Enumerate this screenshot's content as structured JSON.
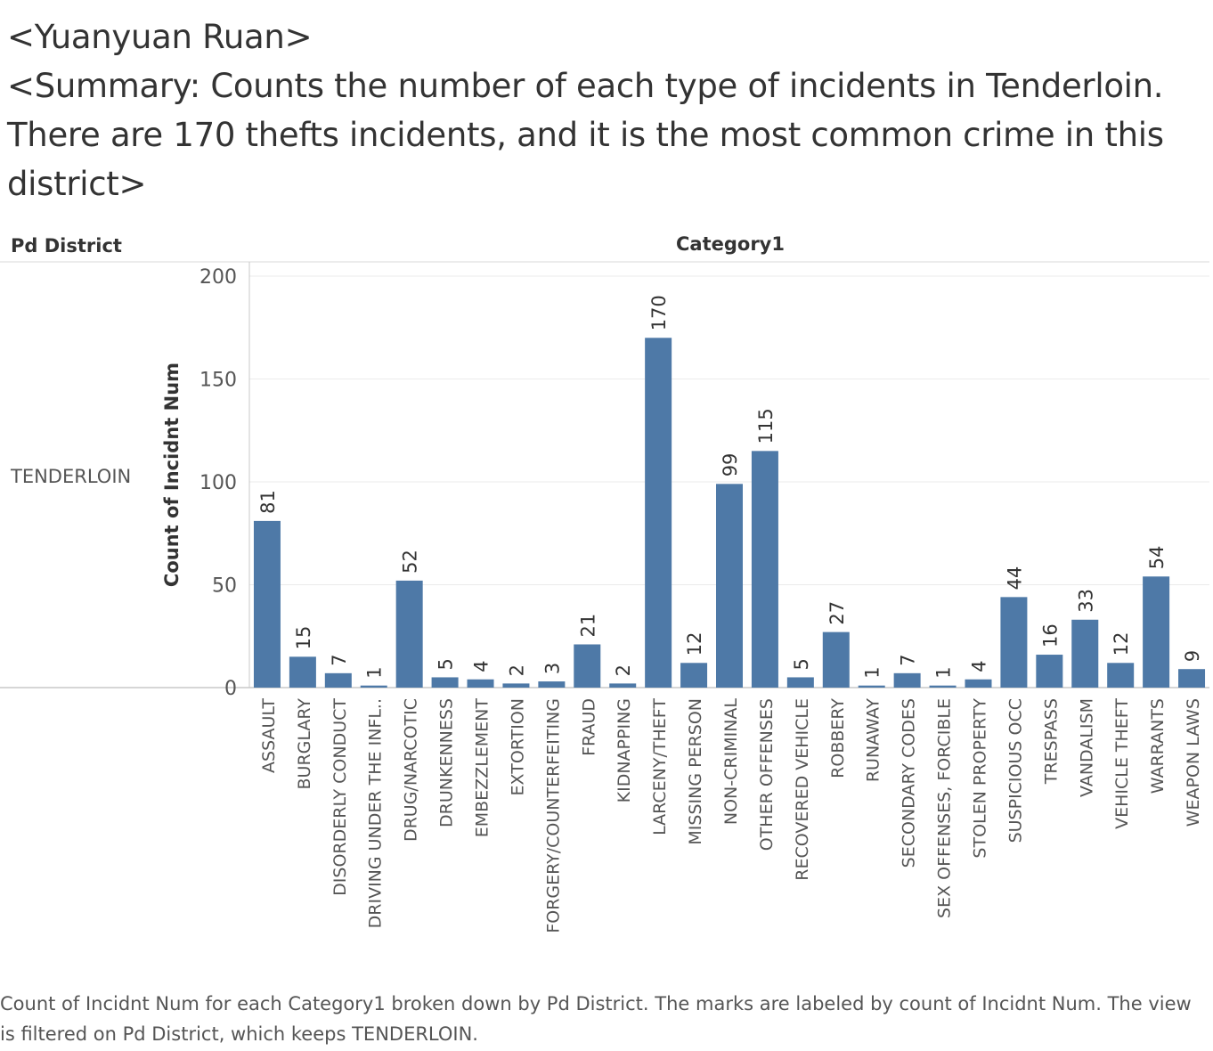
{
  "header": {
    "title": "<Yuanyuan Ruan>",
    "summary": "<Summary: Counts the number of each type of incidents in Tenderloin. There are 170 thefts incidents, and it is the most common crime in this district>"
  },
  "table": {
    "row_header": "Pd District",
    "column_header": "Category1",
    "row_value": "TENDERLOIN"
  },
  "caption": "Count of Incidnt Num for each Category1 broken down by Pd District.  The marks are labeled by count of Incidnt Num. The view is filtered on Pd District, which keeps TENDERLOIN.",
  "colors": {
    "bar": "#4e79a7",
    "grid": "#ebebeb",
    "axis": "#c8c8c8"
  },
  "chart_data": {
    "type": "bar",
    "title": "",
    "xlabel": "",
    "ylabel": "Count of Incidnt Num",
    "ylim": [
      0,
      200
    ],
    "y_ticks": [
      0,
      50,
      100,
      150,
      200
    ],
    "grid": true,
    "categories": [
      "ASSAULT",
      "BURGLARY",
      "DISORDERLY CONDUCT",
      "DRIVING UNDER THE INFL..",
      "DRUG/NARCOTIC",
      "DRUNKENNESS",
      "EMBEZZLEMENT",
      "EXTORTION",
      "FORGERY/COUNTERFEITING",
      "FRAUD",
      "KIDNAPPING",
      "LARCENY/THEFT",
      "MISSING PERSON",
      "NON-CRIMINAL",
      "OTHER OFFENSES",
      "RECOVERED VEHICLE",
      "ROBBERY",
      "RUNAWAY",
      "SECONDARY CODES",
      "SEX OFFENSES, FORCIBLE",
      "STOLEN PROPERTY",
      "SUSPICIOUS OCC",
      "TRESPASS",
      "VANDALISM",
      "VEHICLE THEFT",
      "WARRANTS",
      "WEAPON LAWS"
    ],
    "values": [
      81,
      15,
      7,
      1,
      52,
      5,
      4,
      2,
      3,
      21,
      2,
      170,
      12,
      99,
      115,
      5,
      27,
      1,
      7,
      1,
      4,
      44,
      16,
      33,
      12,
      54,
      9
    ]
  }
}
